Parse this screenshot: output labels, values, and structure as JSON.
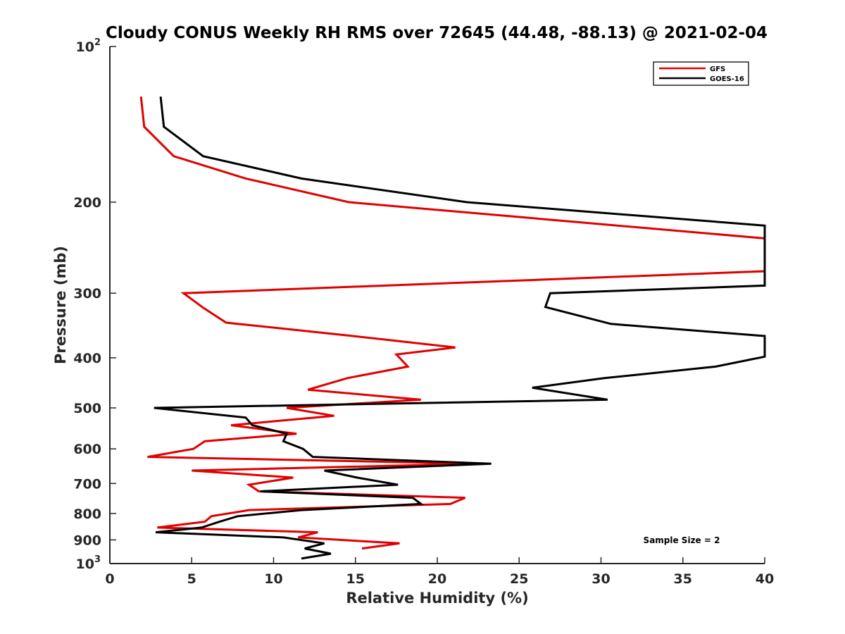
{
  "chart_data": {
    "type": "line",
    "title": "Cloudy CONUS Weekly RH RMS over 72645 (44.48, -88.13) @ 2021-02-04",
    "xlabel": "Relative Humidity (%)",
    "ylabel": "Pressure (mb)",
    "xlim": [
      0,
      40
    ],
    "ylim": [
      100,
      1000
    ],
    "y_scale": "log",
    "y_reversed": true,
    "x_ticks": [
      "0",
      "5",
      "10",
      "15",
      "20",
      "25",
      "30",
      "35",
      "40"
    ],
    "y_ticks": [
      {
        "value": 100,
        "label": "10",
        "sup": "2"
      },
      {
        "value": 200,
        "label": "200",
        "sup": ""
      },
      {
        "value": 300,
        "label": "300",
        "sup": ""
      },
      {
        "value": 400,
        "label": "400",
        "sup": ""
      },
      {
        "value": 500,
        "label": "500",
        "sup": ""
      },
      {
        "value": 600,
        "label": "600",
        "sup": ""
      },
      {
        "value": 700,
        "label": "700",
        "sup": ""
      },
      {
        "value": 800,
        "label": "800",
        "sup": ""
      },
      {
        "value": 900,
        "label": "900",
        "sup": ""
      },
      {
        "value": 1000,
        "label": "10",
        "sup": "3"
      }
    ],
    "legend_position": "top-right",
    "annotation": "Sample Size = 2",
    "grid": false,
    "series": [
      {
        "name": "GFS",
        "color": "#e00000",
        "points": [
          [
            1.9,
            125
          ],
          [
            2.1,
            143
          ],
          [
            3.9,
            163
          ],
          [
            8.3,
            180
          ],
          [
            14.6,
            200
          ],
          [
            40.0,
            235
          ],
          [
            40.0,
            272
          ],
          [
            4.5,
            300
          ],
          [
            5.7,
            320
          ],
          [
            7.1,
            342
          ],
          [
            14.5,
            362
          ],
          [
            21.1,
            382
          ],
          [
            17.5,
            394
          ],
          [
            18.2,
            416
          ],
          [
            14.5,
            438
          ],
          [
            12.1,
            461
          ],
          [
            19.0,
            482
          ],
          [
            10.8,
            500
          ],
          [
            13.7,
            518
          ],
          [
            7.4,
            540
          ],
          [
            11.4,
            561
          ],
          [
            5.8,
            580
          ],
          [
            5.1,
            600
          ],
          [
            2.3,
            622
          ],
          [
            22.5,
            641
          ],
          [
            5.0,
            661
          ],
          [
            11.2,
            682
          ],
          [
            8.5,
            704
          ],
          [
            9.1,
            725
          ],
          [
            21.7,
            746
          ],
          [
            20.8,
            767
          ],
          [
            8.5,
            788
          ],
          [
            6.2,
            810
          ],
          [
            5.8,
            830
          ],
          [
            2.9,
            852
          ],
          [
            12.7,
            870
          ],
          [
            11.5,
            890
          ],
          [
            17.7,
            914
          ],
          [
            15.4,
            935
          ]
        ]
      },
      {
        "name": "GOES-16",
        "color": "#000000",
        "points": [
          [
            3.1,
            125
          ],
          [
            3.3,
            143
          ],
          [
            5.7,
            163
          ],
          [
            11.7,
            180
          ],
          [
            21.8,
            200
          ],
          [
            40.0,
            222
          ],
          [
            40.0,
            290
          ],
          [
            26.9,
            300
          ],
          [
            26.6,
            319
          ],
          [
            30.6,
            344
          ],
          [
            40.0,
            363
          ],
          [
            40.0,
            398
          ],
          [
            37.0,
            416
          ],
          [
            30.2,
            438
          ],
          [
            25.8,
            457
          ],
          [
            30.4,
            482
          ],
          [
            2.7,
            500
          ],
          [
            8.3,
            522
          ],
          [
            8.7,
            540
          ],
          [
            10.8,
            561
          ],
          [
            10.6,
            580
          ],
          [
            11.8,
            600
          ],
          [
            12.4,
            622
          ],
          [
            23.3,
            641
          ],
          [
            13.1,
            661
          ],
          [
            15.1,
            682
          ],
          [
            17.6,
            704
          ],
          [
            9.2,
            725
          ],
          [
            18.5,
            746
          ],
          [
            19.0,
            767
          ],
          [
            11.7,
            788
          ],
          [
            7.8,
            810
          ],
          [
            6.7,
            830
          ],
          [
            5.6,
            852
          ],
          [
            2.8,
            870
          ],
          [
            10.6,
            890
          ],
          [
            13.1,
            914
          ],
          [
            11.9,
            935
          ],
          [
            13.5,
            957
          ],
          [
            11.7,
            978
          ]
        ]
      }
    ]
  }
}
